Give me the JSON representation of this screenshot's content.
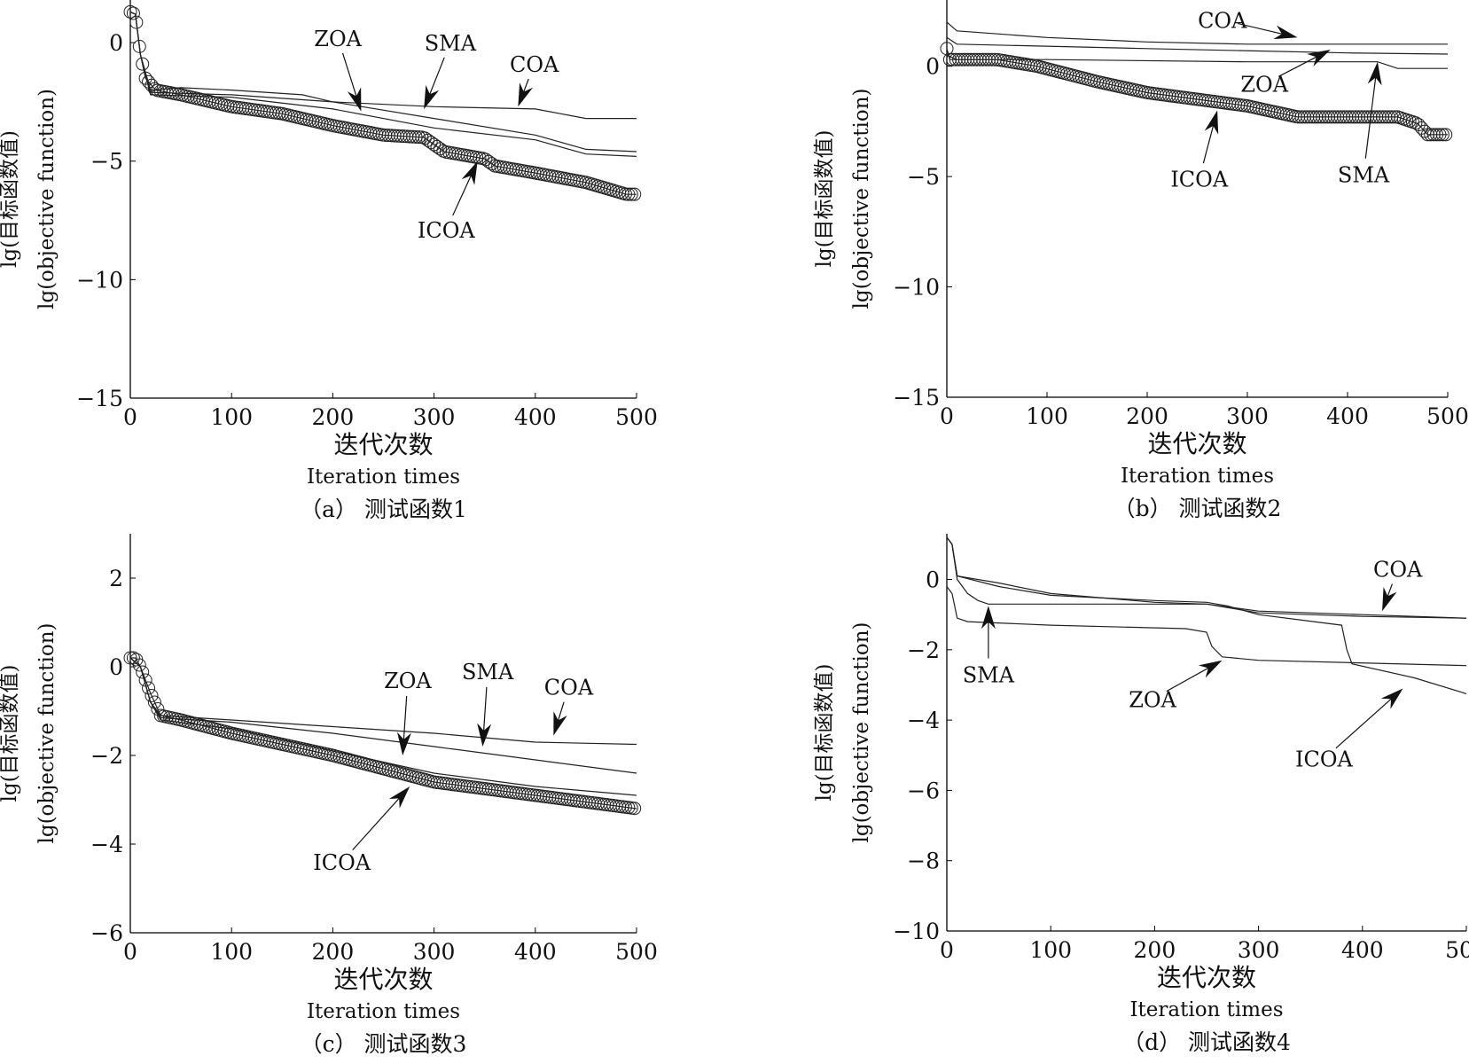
{
  "chart_data": [
    {
      "type": "line",
      "caption": "（a） 测试函数1",
      "xlabel_cn": "迭代次数",
      "xlabel_en": "Iteration times",
      "ylabel_cn": "lg(目标函数值)",
      "ylabel_en": "lg(objective function)",
      "xlim": [
        0,
        500
      ],
      "ylim": [
        -15,
        1.8
      ],
      "xticks": [
        0,
        100,
        200,
        300,
        400,
        500
      ],
      "yticks": [
        0,
        -5,
        -10,
        -15
      ],
      "ytick_labels": [
        "0",
        "−5",
        "−10",
        "−15"
      ],
      "grid": false,
      "series": [
        {
          "name": "COA",
          "marker": "none",
          "x": [
            0,
            5,
            10,
            20,
            50,
            100,
            170,
            200,
            300,
            400,
            450,
            500
          ],
          "y": [
            1.3,
            1.2,
            -0.5,
            -2.0,
            -1.9,
            -2.0,
            -2.2,
            -2.5,
            -2.7,
            -2.8,
            -3.2,
            -3.2
          ]
        },
        {
          "name": "SMA",
          "marker": "none",
          "x": [
            0,
            5,
            10,
            20,
            100,
            200,
            300,
            400,
            450,
            500
          ],
          "y": [
            1.3,
            1.2,
            -0.5,
            -2.1,
            -2.2,
            -2.5,
            -3.2,
            -3.9,
            -4.5,
            -4.6
          ]
        },
        {
          "name": "ZOA",
          "marker": "none",
          "x": [
            0,
            5,
            10,
            20,
            100,
            200,
            300,
            400,
            450,
            500
          ],
          "y": [
            1.3,
            1.2,
            -0.5,
            -2.2,
            -2.3,
            -2.8,
            -3.6,
            -4.1,
            -4.7,
            -4.8
          ]
        },
        {
          "name": "ICOA",
          "marker": "circle",
          "x": [
            0,
            5,
            10,
            15,
            25,
            50,
            100,
            150,
            200,
            250,
            290,
            300,
            310,
            350,
            360,
            400,
            450,
            490,
            500
          ],
          "y": [
            1.3,
            1.2,
            -0.5,
            -1.5,
            -2.0,
            -2.2,
            -2.7,
            -3.0,
            -3.5,
            -3.9,
            -4.0,
            -4.3,
            -4.6,
            -4.9,
            -5.2,
            -5.5,
            -5.9,
            -6.4,
            -6.4
          ]
        }
      ],
      "annotations": [
        {
          "label": "ZOA",
          "text_at": [
            205,
            0.2
          ],
          "arrow_to": [
            228,
            -2.9
          ]
        },
        {
          "label": "SMA",
          "text_at": [
            316,
            0.0
          ],
          "arrow_to": [
            290,
            -2.8
          ]
        },
        {
          "label": "COA",
          "text_at": [
            399,
            -0.9
          ],
          "arrow_to": [
            383,
            -2.7
          ]
        },
        {
          "label": "ICOA",
          "text_at": [
            312,
            -7.9
          ],
          "arrow_to": [
            343,
            -5.0
          ]
        }
      ]
    },
    {
      "type": "line",
      "caption": "（b） 测试函数2",
      "xlabel_cn": "迭代次数",
      "xlabel_en": "Iteration times",
      "ylabel_cn": "lg(目标函数值)",
      "ylabel_en": "lg(objective function)",
      "xlim": [
        0,
        500
      ],
      "ylim": [
        -15,
        3
      ],
      "xticks": [
        0,
        100,
        200,
        300,
        400,
        500
      ],
      "yticks": [
        0,
        -5,
        -10,
        -15
      ],
      "ytick_labels": [
        "0",
        "−5",
        "−10",
        "−15"
      ],
      "grid": false,
      "series": [
        {
          "name": "COA",
          "marker": "none",
          "x": [
            0,
            10,
            100,
            200,
            300,
            500
          ],
          "y": [
            2.0,
            1.6,
            1.3,
            1.1,
            1.0,
            1.0
          ]
        },
        {
          "name": "ZOA",
          "marker": "none",
          "x": [
            0,
            10,
            200,
            400,
            500
          ],
          "y": [
            1.3,
            1.0,
            0.8,
            0.6,
            0.55
          ]
        },
        {
          "name": "SMA",
          "marker": "none",
          "x": [
            0,
            10,
            100,
            300,
            430,
            450,
            500
          ],
          "y": [
            0.5,
            0.3,
            0.3,
            0.2,
            0.2,
            -0.1,
            -0.1
          ]
        },
        {
          "name": "ICOA",
          "marker": "circle",
          "x": [
            0,
            3,
            50,
            90,
            150,
            200,
            250,
            300,
            350,
            400,
            450,
            470,
            480,
            500
          ],
          "y": [
            0.8,
            0.3,
            0.3,
            0.0,
            -0.7,
            -1.2,
            -1.5,
            -1.8,
            -2.3,
            -2.3,
            -2.3,
            -2.6,
            -3.1,
            -3.1
          ]
        }
      ],
      "annotations": [
        {
          "label": "COA",
          "text_at": [
            275,
            2.1
          ],
          "arrow_to": [
            350,
            1.3
          ]
        },
        {
          "label": "ZOA",
          "text_at": [
            317,
            -0.8
          ],
          "arrow_to": [
            383,
            0.75
          ]
        },
        {
          "label": "SMA",
          "text_at": [
            416,
            -4.9
          ],
          "arrow_to": [
            430,
            0.2
          ]
        },
        {
          "label": "ICOA",
          "text_at": [
            252,
            -5.1
          ],
          "arrow_to": [
            270,
            -2.0
          ]
        }
      ]
    },
    {
      "type": "line",
      "caption": "（c） 测试函数3",
      "xlabel_cn": "迭代次数",
      "xlabel_en": "Iteration times",
      "ylabel_cn": "lg(目标函数值)",
      "ylabel_en": "lg(objective function)",
      "xlim": [
        0,
        500
      ],
      "ylim": [
        -6,
        3
      ],
      "xticks": [
        0,
        100,
        200,
        300,
        400,
        500
      ],
      "yticks": [
        2,
        0,
        -2,
        -4,
        -6
      ],
      "ytick_labels": [
        "2",
        "0",
        "−2",
        "−4",
        "−6"
      ],
      "grid": false,
      "series": [
        {
          "name": "COA",
          "marker": "none",
          "x": [
            0,
            10,
            20,
            30,
            100,
            200,
            300,
            400,
            500
          ],
          "y": [
            0.2,
            0,
            -0.8,
            -1.1,
            -1.2,
            -1.35,
            -1.5,
            -1.7,
            -1.75
          ]
        },
        {
          "name": "SMA",
          "marker": "none",
          "x": [
            0,
            10,
            20,
            30,
            100,
            200,
            300,
            400,
            500
          ],
          "y": [
            0.2,
            0,
            -0.8,
            -1.15,
            -1.25,
            -1.5,
            -1.8,
            -2.1,
            -2.4
          ]
        },
        {
          "name": "ZOA",
          "marker": "none",
          "x": [
            0,
            10,
            20,
            30,
            100,
            200,
            300,
            400,
            500
          ],
          "y": [
            0.2,
            0,
            -0.8,
            -1.2,
            -1.4,
            -1.9,
            -2.4,
            -2.7,
            -2.9
          ]
        },
        {
          "name": "ICOA",
          "marker": "circle",
          "x": [
            0,
            5,
            10,
            20,
            30,
            50,
            100,
            200,
            300,
            400,
            450,
            500
          ],
          "y": [
            0.2,
            0.2,
            0,
            -0.6,
            -1.1,
            -1.2,
            -1.5,
            -2.0,
            -2.6,
            -2.9,
            -3.05,
            -3.2
          ]
        }
      ],
      "annotations": [
        {
          "label": "ZOA",
          "text_at": [
            274,
            -0.3
          ],
          "arrow_to": [
            269,
            -2.0
          ]
        },
        {
          "label": "SMA",
          "text_at": [
            353,
            -0.1
          ],
          "arrow_to": [
            348,
            -1.8
          ]
        },
        {
          "label": "COA",
          "text_at": [
            433,
            -0.45
          ],
          "arrow_to": [
            418,
            -1.55
          ]
        },
        {
          "label": "ICOA",
          "text_at": [
            209,
            -4.4
          ],
          "arrow_to": [
            276,
            -2.7
          ]
        }
      ]
    },
    {
      "type": "line",
      "caption": "（d） 测试函数4",
      "xlabel_cn": "迭代次数",
      "xlabel_en": "Iteration times",
      "ylabel_cn": "lg(目标函数值)",
      "ylabel_en": "lg(objective function)",
      "xlim": [
        0,
        500
      ],
      "ylim": [
        -10,
        1.3
      ],
      "xticks": [
        0,
        100,
        200,
        300,
        400,
        500
      ],
      "yticks": [
        0,
        -2,
        -4,
        -6,
        -8,
        -10
      ],
      "ytick_labels": [
        "0",
        "−2",
        "−4",
        "−6",
        "−8",
        "−10"
      ],
      "grid": false,
      "series": [
        {
          "name": "COA",
          "marker": "none",
          "x": [
            0,
            5,
            10,
            50,
            100,
            200,
            250,
            300,
            400,
            500
          ],
          "y": [
            1.2,
            1.0,
            0.1,
            -0.1,
            -0.4,
            -0.65,
            -0.7,
            -0.9,
            -1.0,
            -1.1
          ]
        },
        {
          "name": "SMA",
          "marker": "none",
          "x": [
            0,
            5,
            10,
            20,
            30,
            40,
            250,
            300,
            400,
            500
          ],
          "y": [
            1.2,
            1.0,
            0,
            -0.4,
            -0.6,
            -0.7,
            -0.7,
            -0.95,
            -1.05,
            -1.1
          ]
        },
        {
          "name": "ZOA",
          "marker": "none",
          "x": [
            0,
            5,
            10,
            20,
            100,
            230,
            250,
            255,
            265,
            300,
            500
          ],
          "y": [
            -0.2,
            -0.4,
            -1.1,
            -1.2,
            -1.3,
            -1.4,
            -1.5,
            -1.9,
            -2.2,
            -2.3,
            -2.45
          ]
        },
        {
          "name": "ICOA",
          "marker": "none",
          "x": [
            0,
            5,
            10,
            50,
            100,
            200,
            250,
            270,
            300,
            380,
            385,
            390,
            450,
            500
          ],
          "y": [
            1.2,
            1.0,
            0.1,
            -0.2,
            -0.45,
            -0.6,
            -0.65,
            -0.75,
            -1.0,
            -1.3,
            -2.0,
            -2.4,
            -2.8,
            -3.25
          ]
        }
      ],
      "annotations": [
        {
          "label": "SMA",
          "text_at": [
            40,
            -2.7
          ],
          "arrow_to": [
            40,
            -0.75
          ]
        },
        {
          "label": "ZOA",
          "text_at": [
            198,
            -3.4
          ],
          "arrow_to": [
            265,
            -2.3
          ]
        },
        {
          "label": "COA",
          "text_at": [
            434,
            0.3
          ],
          "arrow_to": [
            419,
            -0.9
          ]
        },
        {
          "label": "ICOA",
          "text_at": [
            363,
            -5.1
          ],
          "arrow_to": [
            439,
            -3.1
          ]
        }
      ]
    }
  ]
}
